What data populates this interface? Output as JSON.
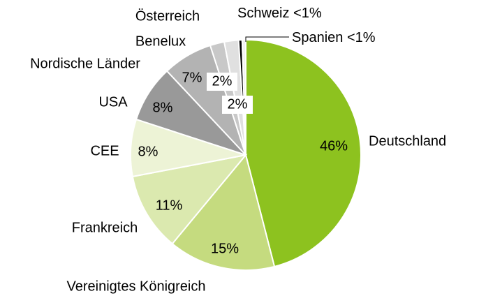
{
  "chart_data": {
    "type": "pie",
    "categories": [
      "Deutschland",
      "Vereinigtes Königreich",
      "Frankreich",
      "CEE",
      "USA",
      "Nordische Länder",
      "Benelux",
      "Österreich",
      "Schweiz",
      "Spanien"
    ],
    "values": [
      46,
      15,
      11,
      8,
      8,
      7,
      2,
      2,
      0.5,
      0.5
    ],
    "value_labels": [
      "46%",
      "15%",
      "11%",
      "8%",
      "8%",
      "7%",
      "2%",
      "2%",
      "<1%",
      "<1%"
    ],
    "colors": [
      "#8dc21f",
      "#c5db7f",
      "#dbe9af",
      "#edf3d6",
      "#999999",
      "#b3b3b3",
      "#c8c8c8",
      "#e0e0e0",
      "#000000",
      "#f2f2f2"
    ]
  }
}
